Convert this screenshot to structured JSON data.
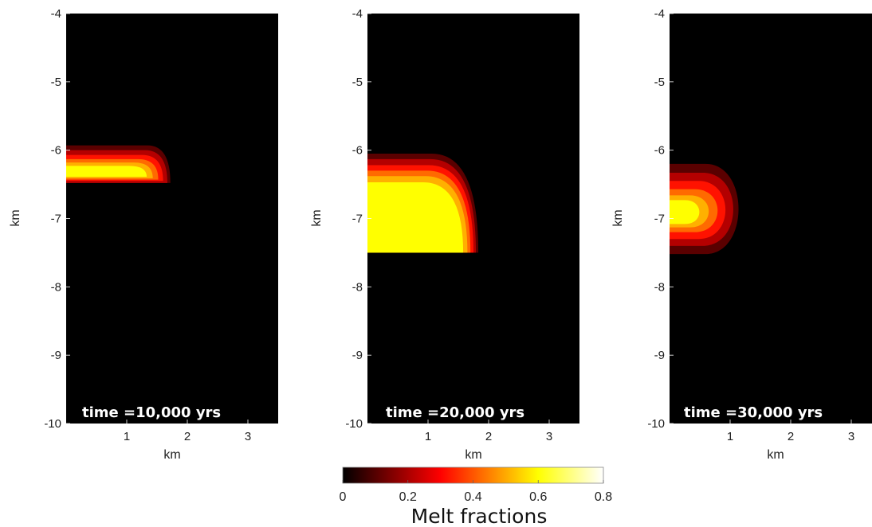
{
  "chart_data": [
    {
      "type": "heatmap",
      "subplot": 1,
      "annotation": "time =10,000 yrs",
      "xlabel": "km",
      "ylabel": "km",
      "xlim": [
        0,
        3.5
      ],
      "ylim": [
        -10,
        -4
      ],
      "xticks": [
        1,
        2,
        3
      ],
      "yticks": [
        -10,
        -9,
        -8,
        -7,
        -6,
        -5,
        -4
      ],
      "background_value": 0,
      "melt_contours": [
        {
          "level": 0.1,
          "x_extent": [
            0,
            1.72
          ],
          "y_extent": [
            -6.48,
            -5.93
          ]
        },
        {
          "level": 0.2,
          "x_extent": [
            0,
            1.67
          ],
          "y_extent": [
            -6.48,
            -6.0
          ]
        },
        {
          "level": 0.3,
          "x_extent": [
            0,
            1.6
          ],
          "y_extent": [
            -6.45,
            -6.07
          ]
        },
        {
          "level": 0.4,
          "x_extent": [
            0,
            1.52
          ],
          "y_extent": [
            -6.43,
            -6.13
          ]
        },
        {
          "level": 0.5,
          "x_extent": [
            0,
            1.43
          ],
          "y_extent": [
            -6.41,
            -6.18
          ]
        },
        {
          "level": 0.6,
          "x_extent": [
            0,
            1.33
          ],
          "y_extent": [
            -6.39,
            -6.23
          ]
        }
      ]
    },
    {
      "type": "heatmap",
      "subplot": 2,
      "annotation": "time =20,000 yrs",
      "xlabel": "km",
      "ylabel": "km",
      "xlim": [
        0,
        3.5
      ],
      "ylim": [
        -10,
        -4
      ],
      "xticks": [
        1,
        2,
        3
      ],
      "yticks": [
        -10,
        -9,
        -8,
        -7,
        -6,
        -5,
        -4
      ],
      "background_value": 0,
      "melt_contours": [
        {
          "level": 0.1,
          "x_extent": [
            0,
            1.83
          ],
          "y_extent": [
            -7.5,
            -6.05
          ]
        },
        {
          "level": 0.2,
          "x_extent": [
            0,
            1.79
          ],
          "y_extent": [
            -7.5,
            -6.13
          ]
        },
        {
          "level": 0.3,
          "x_extent": [
            0,
            1.75
          ],
          "y_extent": [
            -7.5,
            -6.22
          ]
        },
        {
          "level": 0.4,
          "x_extent": [
            0,
            1.7
          ],
          "y_extent": [
            -7.5,
            -6.3
          ]
        },
        {
          "level": 0.5,
          "x_extent": [
            0,
            1.65
          ],
          "y_extent": [
            -7.5,
            -6.38
          ]
        },
        {
          "level": 0.6,
          "x_extent": [
            0,
            1.58
          ],
          "y_extent": [
            -7.5,
            -6.47
          ]
        }
      ]
    },
    {
      "type": "heatmap",
      "subplot": 3,
      "annotation": "time =30,000 yrs",
      "xlabel": "km",
      "ylabel": "km",
      "xlim": [
        0,
        3.5
      ],
      "ylim": [
        -10,
        -4
      ],
      "xticks": [
        1,
        2,
        3
      ],
      "yticks": [
        -10,
        -9,
        -8,
        -7,
        -6,
        -5,
        -4
      ],
      "background_value": 0,
      "melt_contours": [
        {
          "level": 0.1,
          "x_extent": [
            0,
            1.32
          ],
          "y_extent": [
            -7.52,
            -6.2
          ]
        },
        {
          "level": 0.2,
          "x_extent": [
            0,
            1.22
          ],
          "y_extent": [
            -7.4,
            -6.33
          ]
        },
        {
          "level": 0.3,
          "x_extent": [
            0,
            1.07
          ],
          "y_extent": [
            -7.3,
            -6.45
          ]
        },
        {
          "level": 0.4,
          "x_extent": [
            0,
            0.92
          ],
          "y_extent": [
            -7.2,
            -6.57
          ]
        },
        {
          "level": 0.5,
          "x_extent": [
            0,
            0.75
          ],
          "y_extent": [
            -7.13,
            -6.66
          ]
        },
        {
          "level": 0.6,
          "x_extent": [
            0,
            0.57
          ],
          "y_extent": [
            -7.08,
            -6.73
          ]
        }
      ]
    }
  ],
  "colorbar": {
    "title": "Melt fractions",
    "range": [
      0,
      0.8
    ],
    "ticks": [
      {
        "value": 0,
        "label": "0"
      },
      {
        "value": 0.2,
        "label": "0.2"
      },
      {
        "value": 0.4,
        "label": "0.4"
      },
      {
        "value": 0.6,
        "label": "0.6"
      },
      {
        "value": 0.8,
        "label": "0.8"
      }
    ],
    "colormap": "hot",
    "level_colors": {
      "0.0": "#000000",
      "0.1": "#5a0000",
      "0.2": "#b40000",
      "0.3": "#ff1200",
      "0.4": "#ff6a00",
      "0.5": "#ffb000",
      "0.6": "#ffff00"
    }
  }
}
